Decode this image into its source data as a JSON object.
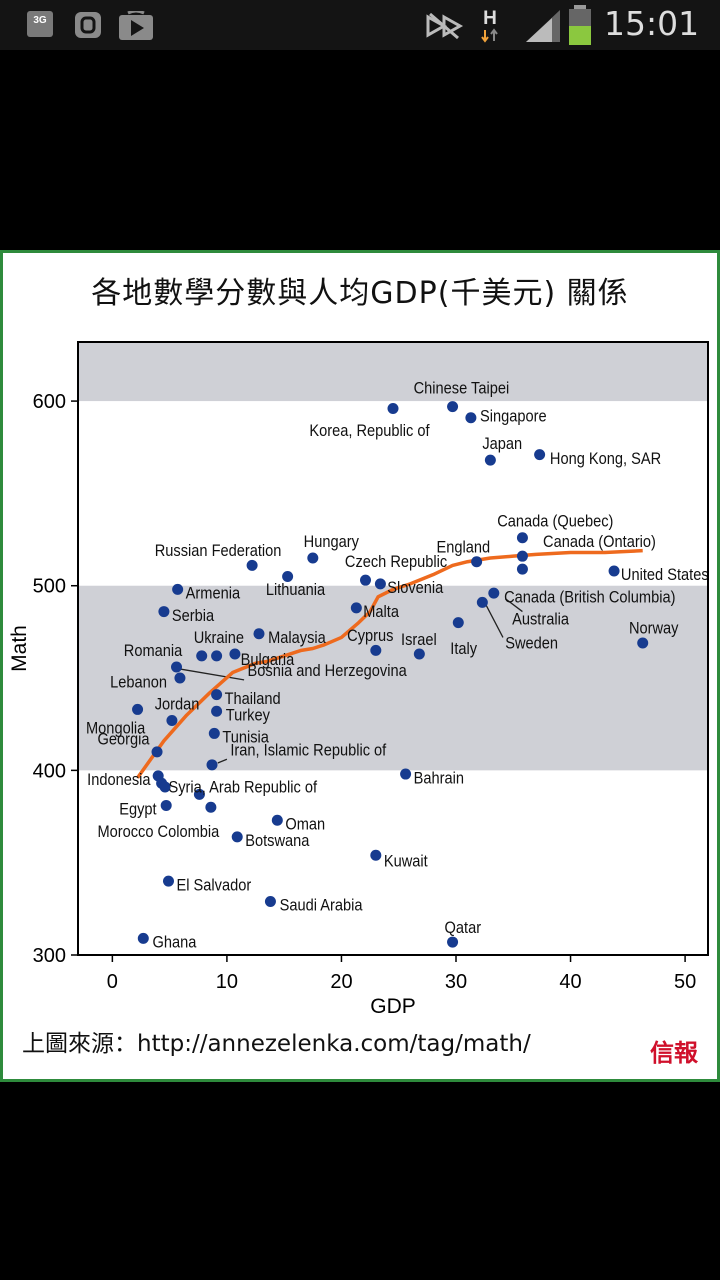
{
  "status_bar": {
    "network_label": "3G",
    "signal_type": "H",
    "time": "15:01",
    "icons": [
      "3g-icon",
      "blogger-icon",
      "play-store-icon",
      "mute-icon",
      "signal-icon",
      "battery-icon"
    ]
  },
  "colors": {
    "band": "#cfd0d6",
    "point": "#173b8f",
    "trend": "#ee6a1e",
    "frame": "#2e8b3c",
    "logo": "#d0102b"
  },
  "source_text": "上圖來源：http://annezelenka.com/tag/math/",
  "logo_text": "信報",
  "chart_data": {
    "type": "scatter",
    "title": "各地數學分數與人均GDP(千美元) 關係",
    "xlabel": "GDP",
    "ylabel": "Math",
    "xlim": [
      -3,
      52
    ],
    "ylim": [
      300,
      632
    ],
    "xticks": [
      0,
      10,
      20,
      30,
      40,
      50
    ],
    "yticks": [
      300,
      400,
      500,
      600
    ],
    "bands": [
      [
        600,
        632
      ],
      [
        400,
        500
      ]
    ],
    "points": [
      {
        "label": "Chinese Taipei",
        "x": 29.7,
        "y": 597
      },
      {
        "label": "Singapore",
        "x": 31.3,
        "y": 591
      },
      {
        "label": "Korea, Republic of",
        "x": 24.5,
        "y": 596
      },
      {
        "label": "Japan",
        "x": 33.0,
        "y": 568
      },
      {
        "label": "Hong Kong, SAR",
        "x": 37.3,
        "y": 571
      },
      {
        "label": "Canada (Quebec)",
        "x": 35.8,
        "y": 526
      },
      {
        "label": "Canada (Ontario)",
        "x": 35.8,
        "y": 516
      },
      {
        "label": "England",
        "x": 31.8,
        "y": 513
      },
      {
        "label": "Hungary",
        "x": 17.5,
        "y": 515
      },
      {
        "label": "Russian Federation",
        "x": 12.2,
        "y": 511
      },
      {
        "label": "Lithuania",
        "x": 15.3,
        "y": 505
      },
      {
        "label": "Czech Republic",
        "x": 22.1,
        "y": 503
      },
      {
        "label": "Slovenia",
        "x": 23.4,
        "y": 501
      },
      {
        "label": "United States",
        "x": 43.8,
        "y": 508
      },
      {
        "label": "Canada (British Columbia)",
        "x": 35.8,
        "y": 509
      },
      {
        "label": "Australia",
        "x": 33.3,
        "y": 496
      },
      {
        "label": "Sweden",
        "x": 32.3,
        "y": 491
      },
      {
        "label": "Armenia",
        "x": 5.7,
        "y": 498
      },
      {
        "label": "Serbia",
        "x": 4.5,
        "y": 486
      },
      {
        "label": "Malta",
        "x": 21.3,
        "y": 488
      },
      {
        "label": "Norway",
        "x": 46.3,
        "y": 469
      },
      {
        "label": "Italy",
        "x": 30.2,
        "y": 480
      },
      {
        "label": "Israel",
        "x": 26.8,
        "y": 463
      },
      {
        "label": "Cyprus",
        "x": 23.0,
        "y": 465
      },
      {
        "label": "Romania",
        "x": 7.8,
        "y": 462
      },
      {
        "label": "Ukraine",
        "x": 9.1,
        "y": 462
      },
      {
        "label": "Malaysia",
        "x": 12.8,
        "y": 474
      },
      {
        "label": "Bulgaria",
        "x": 10.7,
        "y": 463
      },
      {
        "label": "Lebanon",
        "x": 5.9,
        "y": 450
      },
      {
        "label": "Bosnia and Herzegovina",
        "x": 5.6,
        "y": 456
      },
      {
        "label": "Thailand",
        "x": 9.1,
        "y": 441
      },
      {
        "label": "Jordan",
        "x": 5.2,
        "y": 427
      },
      {
        "label": "Turkey",
        "x": 9.1,
        "y": 432
      },
      {
        "label": "Mongolia",
        "x": 2.2,
        "y": 433
      },
      {
        "label": "Tunisia",
        "x": 8.9,
        "y": 420
      },
      {
        "label": "Georgia",
        "x": 3.9,
        "y": 410
      },
      {
        "label": "Iran, Islamic Republic of",
        "x": 8.7,
        "y": 403
      },
      {
        "label": "Indonesia",
        "x": 4.0,
        "y": 397
      },
      {
        "label": "Syria, Arab Republic of",
        "x": 4.3,
        "y": 393
      },
      {
        "label": "Bahrain",
        "x": 25.6,
        "y": 398
      },
      {
        "label": "Egypt",
        "x": 4.6,
        "y": 391
      },
      {
        "label": "Morocco",
        "x": 4.7,
        "y": 381
      },
      {
        "label": "Colombia",
        "x": 7.6,
        "y": 387
      },
      {
        "label": "Colombia (2)",
        "x": 8.6,
        "y": 380
      },
      {
        "label": "Oman",
        "x": 14.4,
        "y": 373
      },
      {
        "label": "Botswana",
        "x": 10.9,
        "y": 364
      },
      {
        "label": "Kuwait",
        "x": 23.0,
        "y": 354
      },
      {
        "label": "El Salvador",
        "x": 4.9,
        "y": 340
      },
      {
        "label": "Saudi Arabia",
        "x": 13.8,
        "y": 329
      },
      {
        "label": "Ghana",
        "x": 2.7,
        "y": 309
      },
      {
        "label": "Qatar",
        "x": 29.7,
        "y": 307
      }
    ],
    "labels": [
      {
        "text": "Chinese Taipei",
        "x": 26.3,
        "y": 604
      },
      {
        "text": "Singapore",
        "x": 32.1,
        "y": 589
      },
      {
        "text": "Korea, Republic of",
        "x": 17.2,
        "y": 581
      },
      {
        "text": "Japan",
        "x": 32.3,
        "y": 574
      },
      {
        "text": "Hong Kong, SAR",
        "x": 38.2,
        "y": 566
      },
      {
        "text": "Canada (Quebec)",
        "x": 33.6,
        "y": 532
      },
      {
        "text": "Canada (Ontario)",
        "x": 37.6,
        "y": 521
      },
      {
        "text": "England",
        "x": 28.3,
        "y": 518
      },
      {
        "text": "Hungary",
        "x": 16.7,
        "y": 521
      },
      {
        "text": "Russian Federation",
        "x": 3.7,
        "y": 516
      },
      {
        "text": "Lithuania",
        "x": 13.4,
        "y": 495
      },
      {
        "text": "Czech Republic",
        "x": 20.3,
        "y": 510
      },
      {
        "text": "Slovenia",
        "x": 24.0,
        "y": 496
      },
      {
        "text": "United States",
        "x": 44.4,
        "y": 503
      },
      {
        "text": "Canada (British Columbia)",
        "x": 34.2,
        "y": 491
      },
      {
        "text": "Australia",
        "x": 34.9,
        "y": 479
      },
      {
        "text": "Sweden",
        "x": 34.3,
        "y": 466
      },
      {
        "text": "Armenia",
        "x": 6.4,
        "y": 493
      },
      {
        "text": "Serbia",
        "x": 5.2,
        "y": 481
      },
      {
        "text": "Malta",
        "x": 21.9,
        "y": 483
      },
      {
        "text": "Norway",
        "x": 45.1,
        "y": 474
      },
      {
        "text": "Italy",
        "x": 29.5,
        "y": 463
      },
      {
        "text": "Israel",
        "x": 25.2,
        "y": 468
      },
      {
        "text": "Cyprus",
        "x": 20.5,
        "y": 470
      },
      {
        "text": "Romania",
        "x": 1.0,
        "y": 462
      },
      {
        "text": "Ukraine",
        "x": 7.1,
        "y": 469
      },
      {
        "text": "Malaysia",
        "x": 13.6,
        "y": 469
      },
      {
        "text": "Bulgaria",
        "x": 11.2,
        "y": 457
      },
      {
        "text": "Lebanon",
        "x": -0.2,
        "y": 445
      },
      {
        "text": "Bosnia and Herzegovina",
        "x": 11.8,
        "y": 451
      },
      {
        "text": "Thailand",
        "x": 9.8,
        "y": 436
      },
      {
        "text": "Jordan",
        "x": 3.7,
        "y": 433
      },
      {
        "text": "Turkey",
        "x": 9.9,
        "y": 427
      },
      {
        "text": "Mongolia",
        "x": -2.3,
        "y": 420
      },
      {
        "text": "Tunisia",
        "x": 9.6,
        "y": 415
      },
      {
        "text": "Georgia",
        "x": -1.3,
        "y": 414
      },
      {
        "text": "Iran, Islamic Republic of",
        "x": 10.3,
        "y": 408
      },
      {
        "text": "Indonesia",
        "x": -2.2,
        "y": 392
      },
      {
        "text": "Syria, Arab Republic of",
        "x": 4.9,
        "y": 388
      },
      {
        "text": "Bahrain",
        "x": 26.3,
        "y": 393
      },
      {
        "text": "Egypt",
        "x": 0.6,
        "y": 376
      },
      {
        "text": "Morocco Colombia",
        "x": -1.3,
        "y": 364
      },
      {
        "text": "Oman",
        "x": 15.1,
        "y": 368
      },
      {
        "text": "Botswana",
        "x": 11.6,
        "y": 359
      },
      {
        "text": "Kuwait",
        "x": 23.7,
        "y": 348
      },
      {
        "text": "El Salvador",
        "x": 5.6,
        "y": 335
      },
      {
        "text": "Saudi Arabia",
        "x": 14.6,
        "y": 324
      },
      {
        "text": "Ghana",
        "x": 3.5,
        "y": 304
      },
      {
        "text": "Qatar",
        "x": 29.0,
        "y": 312
      }
    ],
    "leaders": [
      {
        "from": [
          34.3,
          493
        ],
        "to": [
          35.8,
          486
        ]
      },
      {
        "from": [
          32.5,
          491
        ],
        "to": [
          34.1,
          472
        ]
      },
      {
        "from": [
          5.8,
          455
        ],
        "to": [
          11.5,
          449
        ]
      },
      {
        "from": [
          9.2,
          404
        ],
        "to": [
          10.0,
          406
        ]
      }
    ],
    "trend": [
      [
        2.2,
        396
      ],
      [
        4.5,
        416
      ],
      [
        6.5,
        430
      ],
      [
        8.5,
        442
      ],
      [
        10.5,
        453
      ],
      [
        12.5,
        458
      ],
      [
        13.5,
        459
      ],
      [
        15.5,
        463
      ],
      [
        16.5,
        465
      ],
      [
        17.5,
        466
      ],
      [
        18.5,
        468
      ],
      [
        20,
        472
      ],
      [
        21.5,
        480
      ],
      [
        22.5,
        486
      ],
      [
        23.2,
        494
      ],
      [
        24.5,
        498
      ],
      [
        26,
        501
      ],
      [
        28,
        506
      ],
      [
        29.7,
        511
      ],
      [
        31,
        513
      ],
      [
        33,
        515
      ],
      [
        35,
        516
      ],
      [
        37,
        517
      ],
      [
        40,
        518
      ],
      [
        43,
        518
      ],
      [
        46.3,
        519
      ]
    ]
  }
}
